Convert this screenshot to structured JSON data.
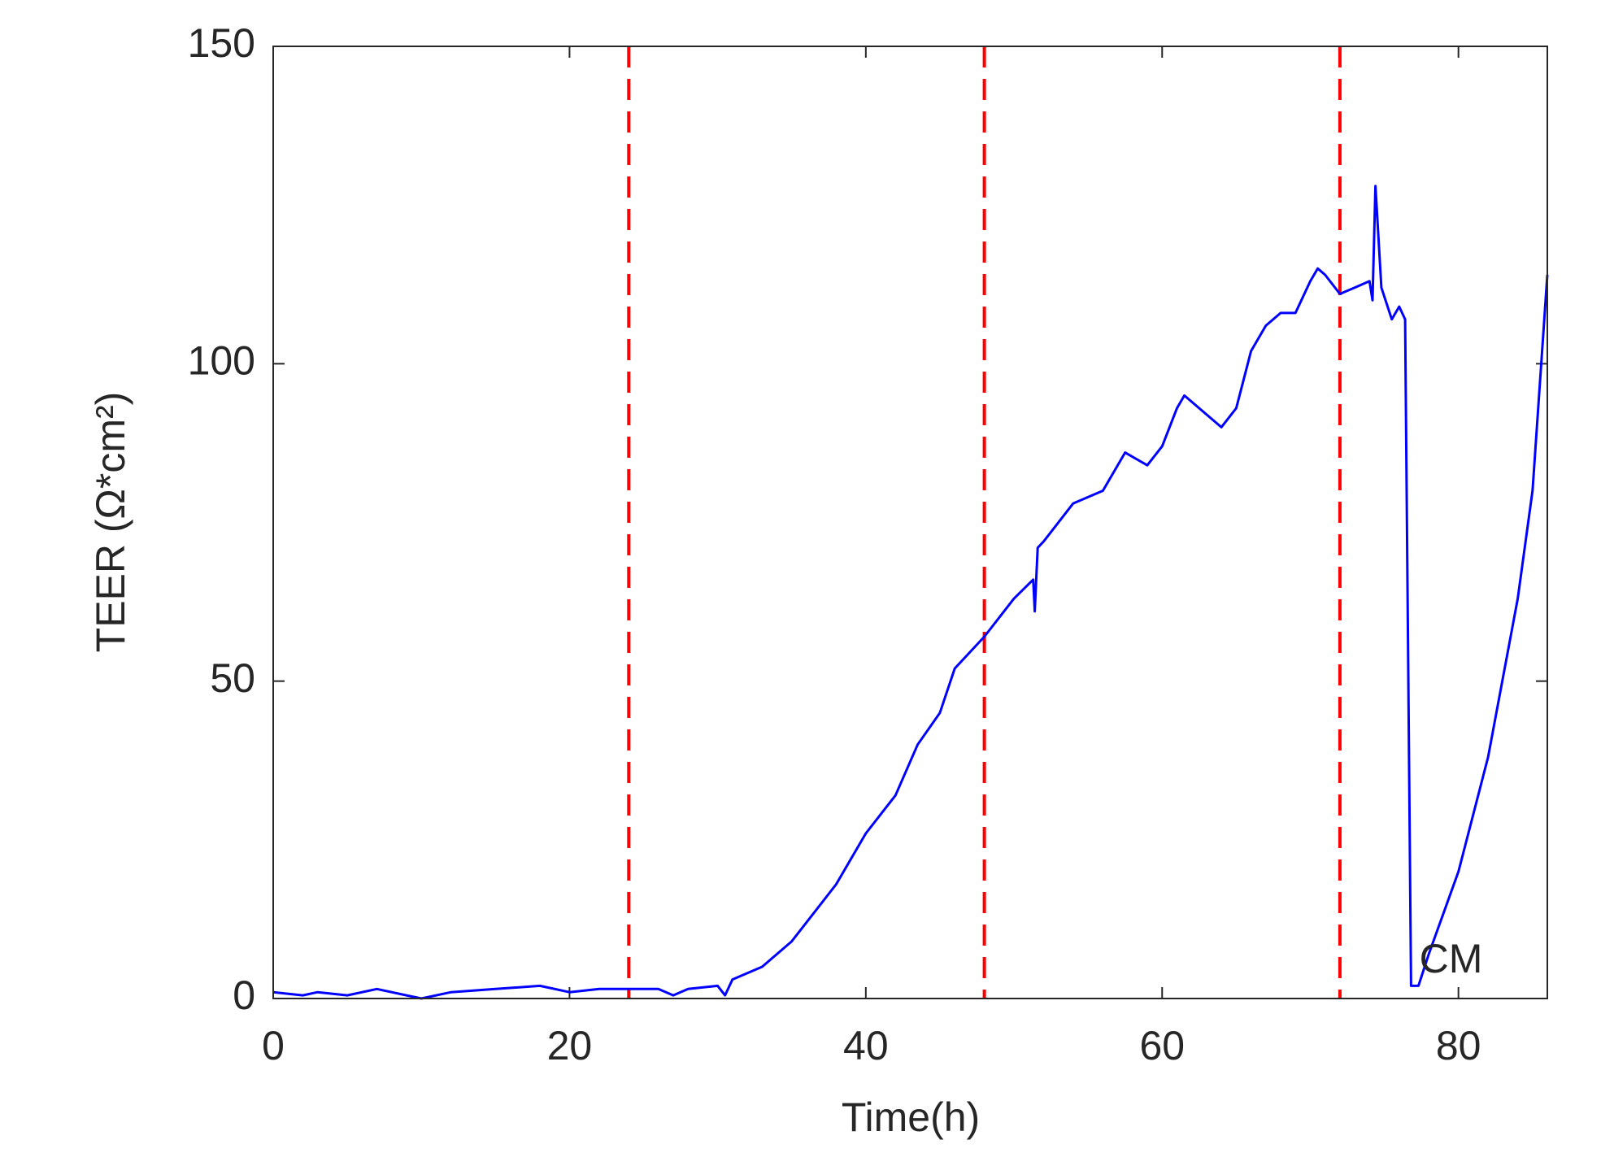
{
  "chart_data": {
    "type": "line",
    "xlabel": "Time(h)",
    "ylabel": "TEER (Ω*cm²)",
    "x": [
      0,
      2,
      3,
      5,
      7,
      10,
      12,
      15,
      18,
      20,
      22,
      24,
      26,
      27,
      28,
      30,
      30.5,
      31,
      33,
      35,
      38,
      40,
      42,
      43.5,
      45,
      46,
      48,
      50,
      51.3,
      51.4,
      51.6,
      52,
      54,
      56,
      57.5,
      59,
      60,
      61,
      61.5,
      62.5,
      64,
      65,
      66,
      67,
      68,
      69,
      70,
      70.5,
      71,
      72,
      73,
      74,
      74.2,
      74.4,
      74.8,
      75.5,
      76,
      76.4,
      76.8,
      77.3,
      78,
      80,
      82,
      84,
      85,
      86
    ],
    "values": [
      1,
      0.5,
      1,
      0.5,
      1.5,
      0,
      1,
      1.5,
      2,
      1,
      1.5,
      1.5,
      1.5,
      0.5,
      1.5,
      2,
      0.5,
      3,
      5,
      9,
      18,
      26,
      32,
      40,
      45,
      52,
      57,
      63,
      66,
      61,
      71,
      72,
      78,
      80,
      86,
      84,
      87,
      93,
      95,
      93,
      90,
      93,
      102,
      106,
      108,
      108,
      113,
      115,
      114,
      111,
      112,
      113,
      110,
      128,
      112,
      107,
      109,
      107,
      2,
      2,
      7,
      20,
      38,
      63,
      80,
      114
    ],
    "color": "#0000ff",
    "vlines": [
      24,
      48,
      72
    ],
    "vline_color": "#ff0000",
    "annotation": {
      "text": "CM",
      "x": 79.5,
      "y": 5
    },
    "xlim": [
      0,
      86
    ],
    "ylim": [
      0,
      150
    ],
    "xticks": [
      0,
      20,
      40,
      60,
      80
    ],
    "yticks": [
      0,
      50,
      100,
      150
    ]
  }
}
